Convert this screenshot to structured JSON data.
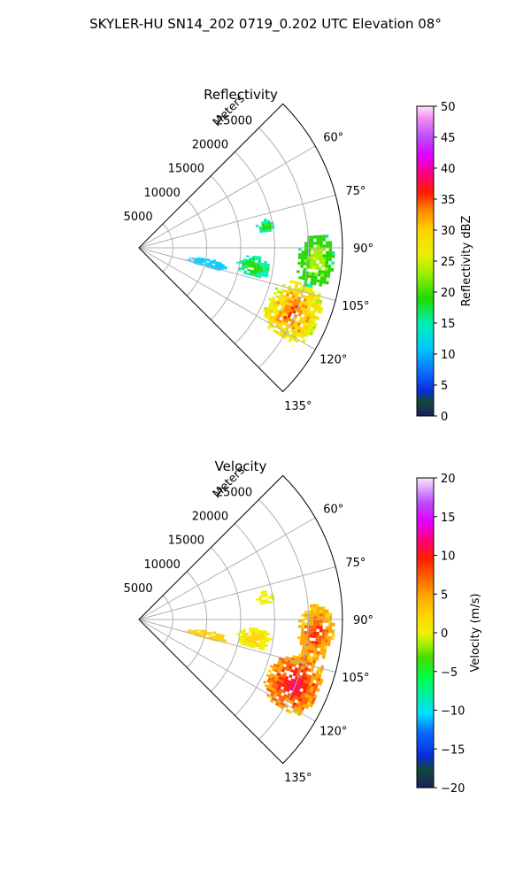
{
  "figure_title": "SKYLER-HU  SN14_202  0719_0.202 UTC Elevation 08°",
  "chart_data": [
    {
      "type": "heatmap",
      "title": "Reflectivity",
      "polar": {
        "theta_min_deg": 45,
        "theta_max_deg": 135,
        "r_max_m": 30000,
        "r_ticks": [
          "5000",
          "10000",
          "15000",
          "20000",
          "25000"
        ],
        "theta_ticks": [
          "60°",
          "75°",
          "90°",
          "105°",
          "120°",
          "135°"
        ],
        "r_axis_label": "Meters",
        "grid": true
      },
      "colorbar": {
        "label": "Reflectivity dBZ",
        "min": 0,
        "max": 50,
        "ticks": [
          "0",
          "5",
          "10",
          "15",
          "20",
          "25",
          "30",
          "35",
          "40",
          "45",
          "50"
        ]
      },
      "echo_regions": [
        {
          "azimuth_deg": [
            102,
            122
          ],
          "range_m": [
            20500,
            28500
          ],
          "value_dbz": [
            25,
            40
          ]
        },
        {
          "azimuth_deg": [
            85,
            103
          ],
          "range_m": [
            23500,
            28500
          ],
          "value_dbz": [
            18,
            28
          ]
        },
        {
          "azimuth_deg": [
            94,
            104
          ],
          "range_m": [
            14500,
            19500
          ],
          "value_dbz": [
            17,
            22
          ]
        },
        {
          "azimuth_deg": [
            99,
            106
          ],
          "range_m": [
            7000,
            13000
          ],
          "value_dbz": [
            11,
            16
          ]
        },
        {
          "azimuth_deg": [
            77,
            83
          ],
          "range_m": [
            17500,
            20000
          ],
          "value_dbz": [
            18,
            20
          ]
        }
      ]
    },
    {
      "type": "heatmap",
      "title": "Velocity",
      "polar": {
        "theta_min_deg": 45,
        "theta_max_deg": 135,
        "r_max_m": 30000,
        "r_ticks": [
          "5000",
          "10000",
          "15000",
          "20000",
          "25000"
        ],
        "theta_ticks": [
          "60°",
          "75°",
          "90°",
          "105°",
          "120°",
          "135°"
        ],
        "r_axis_label": "Meters",
        "grid": true
      },
      "colorbar": {
        "label": "Velocity (m/s)",
        "min": -20,
        "max": 20,
        "ticks": [
          "−20",
          "−15",
          "−10",
          "−5",
          "0",
          "5",
          "10",
          "15",
          "20"
        ]
      },
      "echo_regions": [
        {
          "azimuth_deg": [
            102,
            122
          ],
          "range_m": [
            20500,
            28500
          ],
          "value_ms": [
            3,
            15
          ]
        },
        {
          "azimuth_deg": [
            85,
            103
          ],
          "range_m": [
            23500,
            28500
          ],
          "value_ms": [
            2,
            12
          ]
        },
        {
          "azimuth_deg": [
            94,
            104
          ],
          "range_m": [
            14500,
            19500
          ],
          "value_ms": [
            0,
            3
          ]
        },
        {
          "azimuth_deg": [
            99,
            106
          ],
          "range_m": [
            7000,
            13000
          ],
          "value_ms": [
            2,
            4
          ]
        },
        {
          "azimuth_deg": [
            77,
            83
          ],
          "range_m": [
            17500,
            20000
          ],
          "value_ms": [
            0,
            2
          ]
        }
      ]
    }
  ]
}
